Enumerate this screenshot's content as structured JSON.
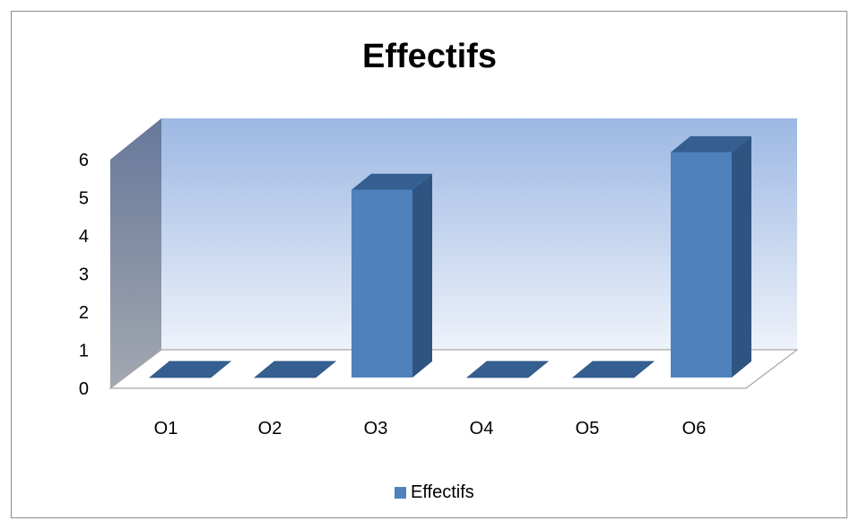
{
  "chart_data": {
    "type": "bar",
    "title": "Effectifs",
    "categories": [
      "O1",
      "O2",
      "O3",
      "O4",
      "O5",
      "O6"
    ],
    "series": [
      {
        "name": "Effectifs",
        "values": [
          0,
          0,
          5,
          0,
          0,
          6
        ]
      }
    ],
    "ylim": [
      0,
      6
    ],
    "yticks": [
      0,
      1,
      2,
      3,
      4,
      5,
      6
    ],
    "xlabel": "",
    "ylabel": "",
    "grid": false,
    "legend_position": "bottom",
    "style": "3d-column",
    "colors": {
      "bar_front": "#4f81bd",
      "bar_side": "#2f5482",
      "bar_top": "#355f91",
      "wall_top": "#9cb8e3",
      "wall_bottom": "#eef2fa",
      "side_wall_top": "#66789a",
      "side_wall_bottom": "#a3a8b0"
    }
  }
}
